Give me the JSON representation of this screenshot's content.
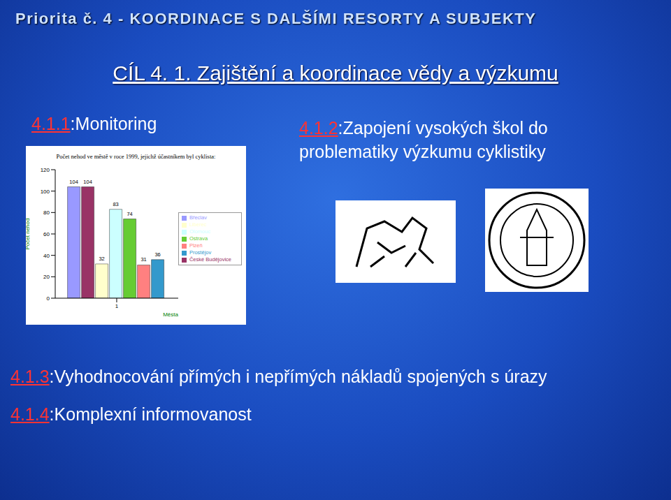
{
  "header": "Priorita č. 4 - KOORDINACE S DALŠÍMI RESORTY A SUBJEKTY",
  "title": "CÍL 4. 1. Zajištění a koordinace vědy a výzkumu",
  "items": [
    {
      "number": "4.1.1",
      "text": ":Monitoring"
    },
    {
      "number": "4.1.2",
      "text": ":Zapojení vysokých škol do problematiky výzkumu cyklistiky"
    },
    {
      "number": "4.1.3",
      "text": ":Vyhodnocování přímých i nepřímých nákladů spojených s úrazy"
    },
    {
      "number": "4.1.4",
      "text": ":Komplexní informovanost"
    }
  ],
  "chart_data": {
    "type": "bar",
    "title": "Počet nehod ve městě v roce 1999, jejichž účastníkem byl cyklista:",
    "x_label": "Města",
    "y_label": "Počet nehod",
    "categories": [
      "1"
    ],
    "series": [
      {
        "name": "Břeclav",
        "color": "#9999ff",
        "values": [
          104
        ]
      },
      {
        "name": "České Budějovice",
        "color": "#993366",
        "values": [
          104
        ]
      },
      {
        "name": "Liberec",
        "color": "#ffffcc",
        "values": [
          32
        ]
      },
      {
        "name": "Olomouc",
        "color": "#ccffff",
        "values": [
          83
        ]
      },
      {
        "name": "Ostrava",
        "color": "#66cc33",
        "values": [
          74
        ]
      },
      {
        "name": "Plzeň",
        "color": "#ff8080",
        "values": [
          31
        ]
      },
      {
        "name": "Prostějov",
        "color": "#3399cc",
        "values": [
          36
        ]
      }
    ],
    "ylim": [
      0,
      120
    ],
    "yticks": [
      0,
      20,
      40,
      60,
      80,
      100,
      120
    ],
    "data_labels": true,
    "legend": "right",
    "grid": false
  }
}
